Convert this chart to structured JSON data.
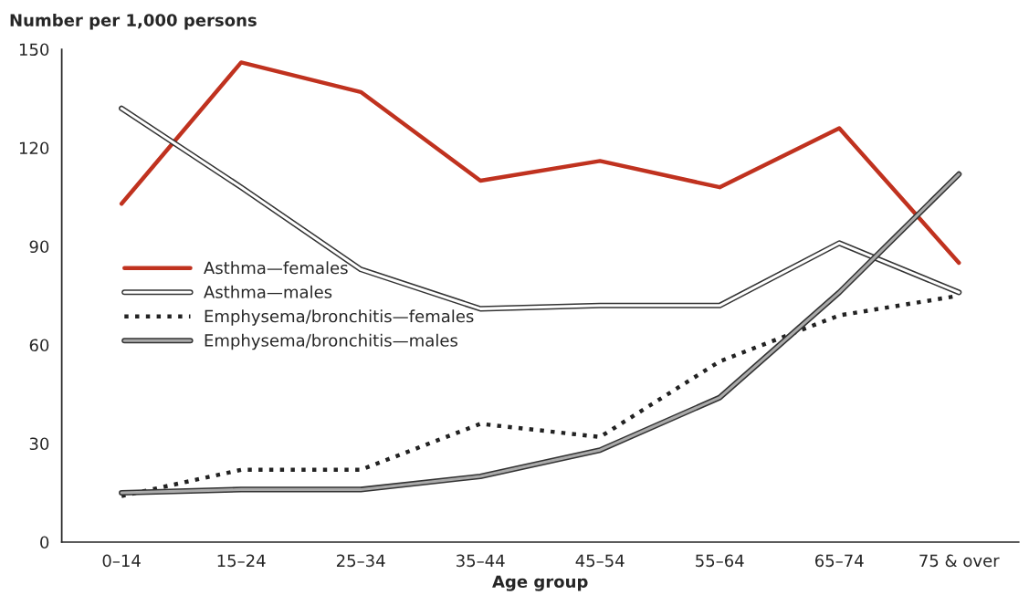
{
  "chart_data": {
    "type": "line",
    "xlabel": "Age group",
    "ylabel": "Number per 1,000 persons",
    "categories": [
      "0–14",
      "15–24",
      "25–34",
      "35–44",
      "45–54",
      "55–64",
      "65–74",
      "75 & over"
    ],
    "series": [
      {
        "name": "Asthma—females",
        "color": "#c0321f",
        "line_style": "solid",
        "values": [
          103,
          146,
          137,
          110,
          116,
          108,
          126,
          85
        ]
      },
      {
        "name": "Asthma—males",
        "color": "#ffffff",
        "line_style": "solid",
        "values": [
          132,
          108,
          83,
          71,
          72,
          72,
          91,
          76
        ]
      },
      {
        "name": "Emphysema/bronchitis—females",
        "color": "#222222",
        "line_style": "dotted",
        "values": [
          14,
          22,
          22,
          36,
          32,
          55,
          69,
          75
        ]
      },
      {
        "name": "Emphysema/bronchitis—males",
        "color": "#aaaaaa",
        "line_style": "solid",
        "values": [
          15,
          16,
          16,
          20,
          28,
          44,
          76,
          112
        ]
      }
    ],
    "ylim": [
      0,
      150
    ],
    "yticks": [
      0,
      30,
      60,
      90,
      120,
      150
    ],
    "grid": false,
    "legend": "left",
    "marker": "none"
  }
}
